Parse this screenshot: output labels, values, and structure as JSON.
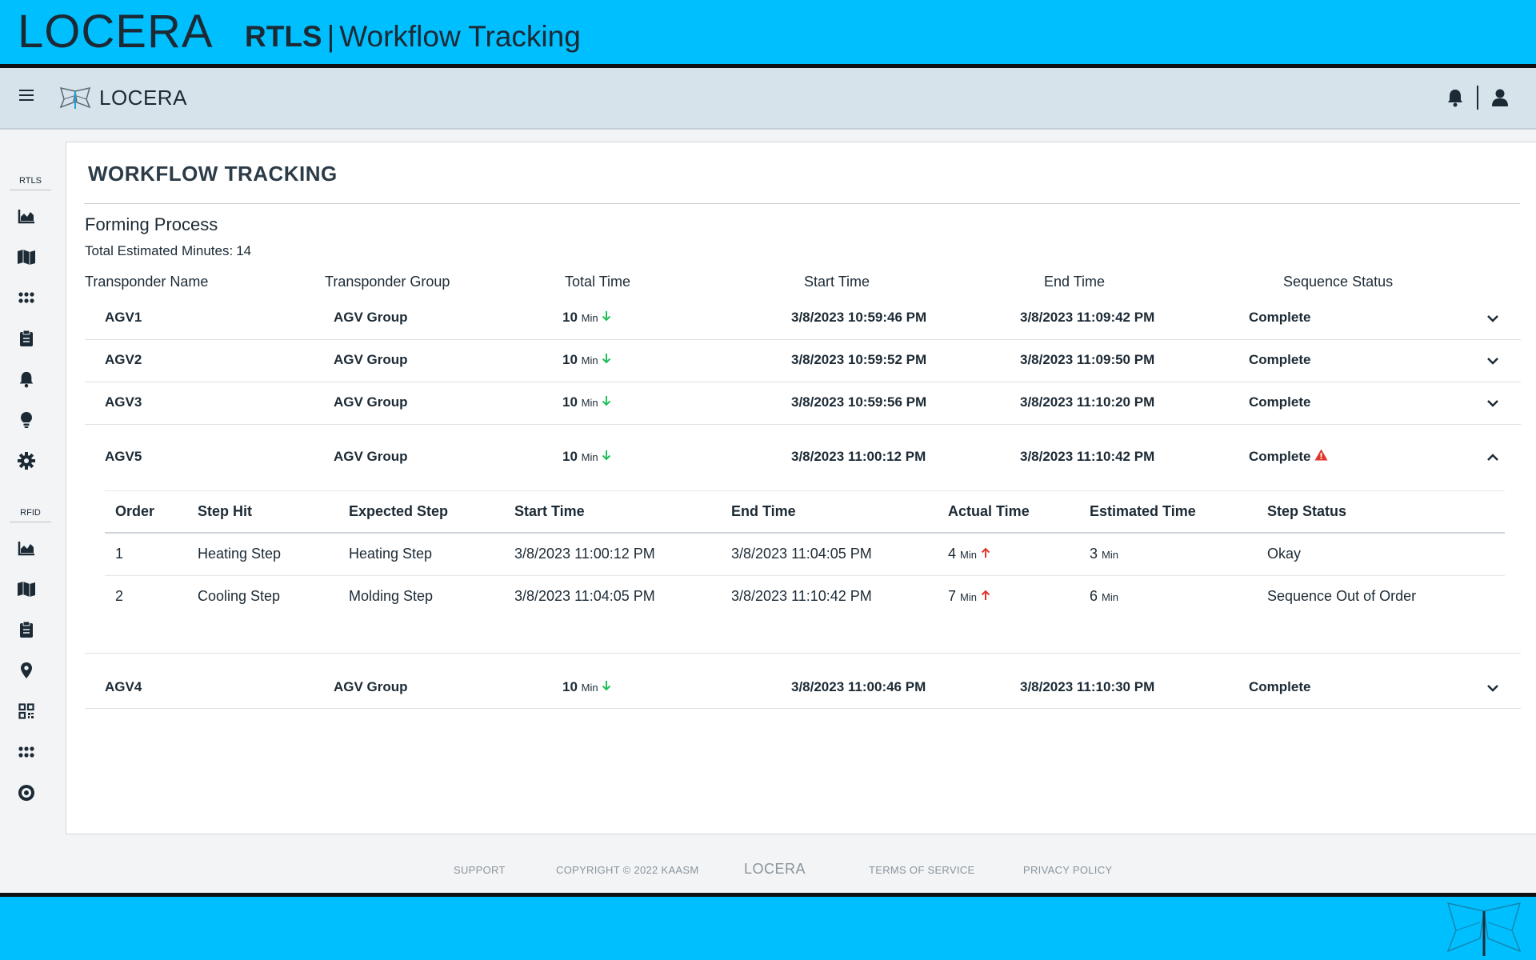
{
  "banner": {
    "logo": "LOCERA",
    "title_bold": "RTLS",
    "title_sep": "|",
    "title_rest": "Workflow Tracking"
  },
  "navbar": {
    "logo_text": "LOCERA",
    "icons": [
      "menu-icon",
      "butterfly-logo-icon",
      "bell-icon",
      "user-icon"
    ]
  },
  "sidebar": {
    "sections": [
      {
        "label": "RTLS",
        "items": [
          "chart-area-icon",
          "map-icon",
          "apps-icon",
          "clipboard-icon",
          "bell-icon",
          "lightbulb-icon",
          "gear-icon"
        ]
      },
      {
        "label": "RFID",
        "items": [
          "chart-area-icon",
          "map-icon",
          "clipboard-icon",
          "map-pin-icon",
          "qr-code-icon",
          "apps-icon",
          "target-icon"
        ]
      }
    ]
  },
  "page": {
    "title": "WORKFLOW TRACKING",
    "process_name": "Forming Process",
    "total_label": "Total Estimated Minutes:",
    "total_value": "14"
  },
  "table": {
    "headers": [
      "Transponder Name",
      "Transponder Group",
      "Total Time",
      "Start Time",
      "End Time",
      "Sequence Status"
    ],
    "min_unit": "Min",
    "rows": [
      {
        "name": "AGV1",
        "group": "AGV Group",
        "total": "10",
        "start": "3/8/2023 10:59:46 PM",
        "end": "3/8/2023 11:09:42 PM",
        "status": "Complete",
        "warning": false,
        "expanded": false
      },
      {
        "name": "AGV2",
        "group": "AGV Group",
        "total": "10",
        "start": "3/8/2023 10:59:52 PM",
        "end": "3/8/2023 11:09:50 PM",
        "status": "Complete",
        "warning": false,
        "expanded": false
      },
      {
        "name": "AGV3",
        "group": "AGV Group",
        "total": "10",
        "start": "3/8/2023 10:59:56 PM",
        "end": "3/8/2023 11:10:20 PM",
        "status": "Complete",
        "warning": false,
        "expanded": false
      },
      {
        "name": "AGV5",
        "group": "AGV Group",
        "total": "10",
        "start": "3/8/2023 11:00:12 PM",
        "end": "3/8/2023 11:10:42 PM",
        "status": "Complete",
        "warning": true,
        "expanded": true
      },
      {
        "name": "AGV4",
        "group": "AGV Group",
        "total": "10",
        "start": "3/8/2023 11:00:46 PM",
        "end": "3/8/2023 11:10:30 PM",
        "status": "Complete",
        "warning": false,
        "expanded": false
      }
    ]
  },
  "detail": {
    "headers": [
      "Order",
      "Step Hit",
      "Expected Step",
      "Start Time",
      "End Time",
      "Actual Time",
      "Estimated Time",
      "Step Status"
    ],
    "rows": [
      {
        "order": "1",
        "step_hit": "Heating Step",
        "expected": "Heating Step",
        "start": "3/8/2023 11:00:12 PM",
        "end": "3/8/2023 11:04:05 PM",
        "actual": "4",
        "estimated": "3",
        "status": "Okay"
      },
      {
        "order": "2",
        "step_hit": "Cooling Step",
        "expected": "Molding Step",
        "start": "3/8/2023 11:04:05 PM",
        "end": "3/8/2023 11:10:42 PM",
        "actual": "7",
        "estimated": "6",
        "status": "Sequence Out of Order"
      }
    ]
  },
  "footer": {
    "support": "SUPPORT",
    "copyright": "COPYRIGHT © 2022 KAASM",
    "logo": "LOCERA",
    "terms": "TERMS OF SERVICE",
    "privacy": "PRIVACY POLICY"
  },
  "colors": {
    "banner": "#00bfff",
    "down_arrow": "#1fbf5a",
    "up_arrow": "#e0352b",
    "warning": "#e0352b"
  }
}
